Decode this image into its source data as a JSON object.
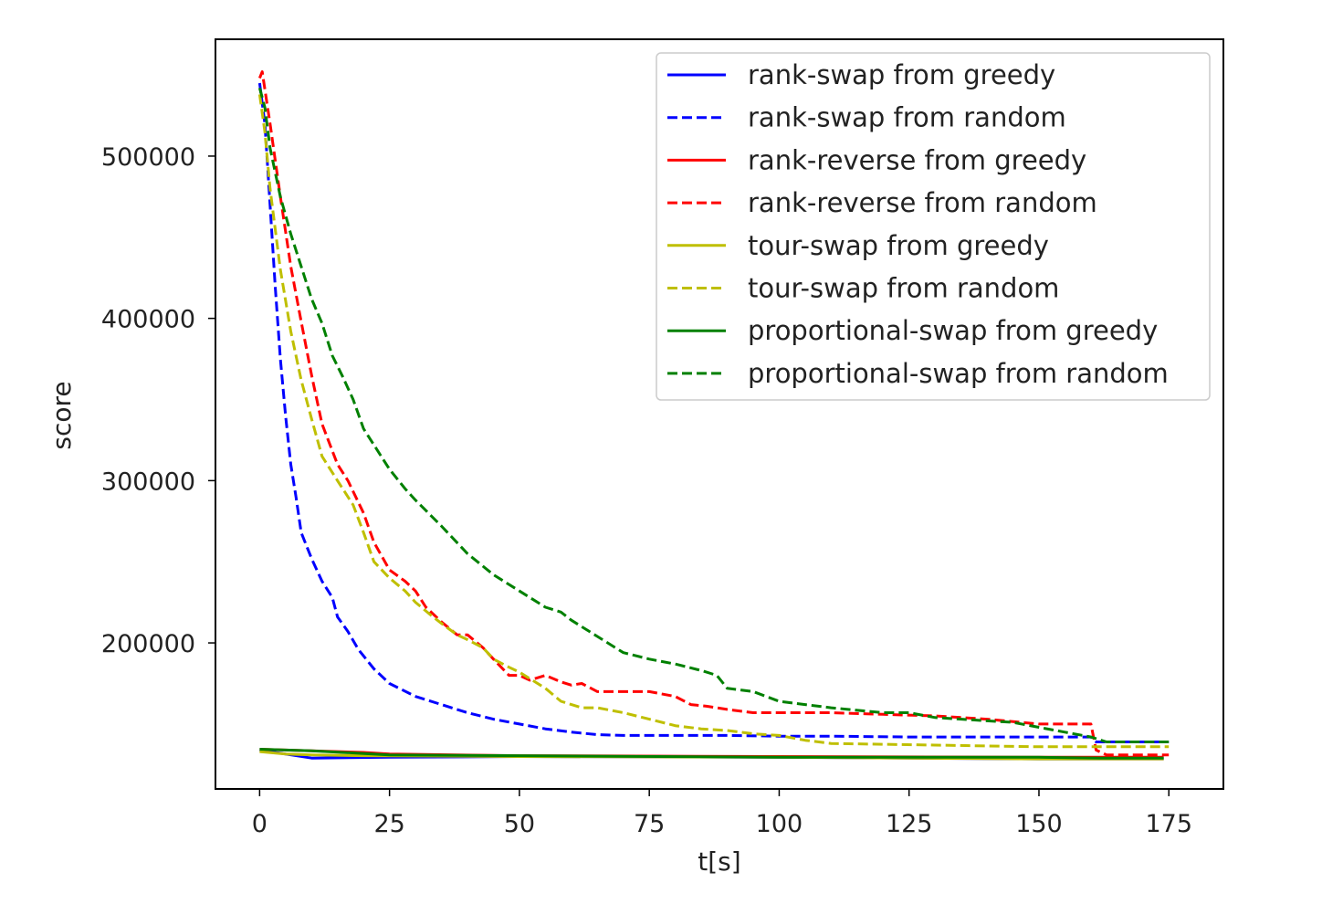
{
  "chart_data": {
    "type": "line",
    "title": "",
    "xlabel": "t[s]",
    "ylabel": "score",
    "xlim": [
      -8.5,
      185.5
    ],
    "ylim": [
      110000,
      572000
    ],
    "xticks": [
      0,
      25,
      50,
      75,
      100,
      125,
      150,
      175
    ],
    "yticks": [
      200000,
      300000,
      400000,
      500000
    ],
    "grid": false,
    "legend_position": "top-right",
    "series": [
      {
        "name": "rank-swap from greedy",
        "color": "#0000ff",
        "dash": "solid",
        "x": [
          0,
          10,
          25,
          50,
          100,
          150,
          162,
          174
        ],
        "y": [
          134000,
          129000,
          129500,
          130000,
          129500,
          128500,
          128500,
          128500
        ]
      },
      {
        "name": "rank-swap from random",
        "color": "#0000ff",
        "dash": "dashed",
        "x": [
          0,
          1,
          2,
          3,
          4,
          5,
          6,
          7,
          8,
          10,
          12,
          14,
          15,
          17,
          19,
          21,
          22,
          25,
          30,
          35,
          40,
          45,
          50,
          55,
          60,
          65,
          70,
          80,
          90,
          100,
          110,
          125,
          140,
          150,
          160,
          161,
          165,
          175
        ],
        "y": [
          545000,
          520000,
          470000,
          420000,
          375000,
          340000,
          310000,
          290000,
          268000,
          252000,
          238000,
          228000,
          216000,
          207000,
          196000,
          188000,
          184000,
          175000,
          167000,
          162000,
          157000,
          153000,
          150000,
          147000,
          145000,
          143500,
          143000,
          143000,
          143000,
          142500,
          142500,
          142000,
          142000,
          142000,
          142000,
          139000,
          139000,
          139000
        ]
      },
      {
        "name": "rank-reverse from greedy",
        "color": "#ff0000",
        "dash": "solid",
        "x": [
          0,
          10,
          20,
          25,
          50,
          100,
          150,
          162,
          174
        ],
        "y": [
          134500,
          133500,
          132500,
          131500,
          130500,
          130000,
          129500,
          129500,
          129500
        ]
      },
      {
        "name": "rank-reverse from random",
        "color": "#ff0000",
        "dash": "dashed",
        "x": [
          0,
          0.5,
          2,
          4,
          6,
          8,
          10,
          12,
          15,
          17,
          20,
          22,
          25,
          28,
          30,
          32,
          35,
          38,
          40,
          43,
          45,
          48,
          50,
          52,
          55,
          58,
          60,
          62,
          65,
          70,
          75,
          80,
          83,
          86,
          90,
          95,
          100,
          110,
          120,
          130,
          140,
          150,
          155,
          160,
          161,
          163,
          175
        ],
        "y": [
          548000,
          552000,
          520000,
          475000,
          432000,
          398000,
          365000,
          335000,
          310000,
          300000,
          280000,
          262000,
          245000,
          238000,
          232000,
          222000,
          213000,
          205000,
          205000,
          197000,
          190000,
          180000,
          180000,
          177000,
          180000,
          176000,
          174000,
          175000,
          170000,
          170000,
          170000,
          167000,
          162000,
          161000,
          159000,
          157000,
          157000,
          157000,
          156000,
          155000,
          153000,
          150000,
          150000,
          150000,
          134000,
          131000,
          131000
        ]
      },
      {
        "name": "tour-swap from greedy",
        "color": "#bfbf00",
        "dash": "solid",
        "x": [
          0,
          5,
          10,
          20,
          50,
          100,
          150,
          174
        ],
        "y": [
          133000,
          131500,
          131000,
          130500,
          130000,
          129500,
          128500,
          128500
        ]
      },
      {
        "name": "tour-swap from random",
        "color": "#bfbf00",
        "dash": "dashed",
        "x": [
          0,
          1,
          2,
          4,
          6,
          8,
          10,
          12,
          15,
          18,
          20,
          22,
          25,
          28,
          30,
          33,
          35,
          38,
          40,
          43,
          45,
          48,
          50,
          55,
          58,
          62,
          65,
          70,
          75,
          80,
          85,
          90,
          95,
          100,
          105,
          110,
          120,
          130,
          140,
          150,
          160,
          165,
          175
        ],
        "y": [
          538000,
          515000,
          480000,
          430000,
          392000,
          362000,
          338000,
          315000,
          300000,
          285000,
          268000,
          250000,
          240000,
          232000,
          225000,
          217000,
          212000,
          205000,
          202000,
          197000,
          190000,
          185000,
          182000,
          172000,
          164000,
          160000,
          160000,
          157000,
          153000,
          149000,
          147000,
          146000,
          144000,
          143000,
          140000,
          138000,
          137500,
          137000,
          136500,
          136000,
          136000,
          136000,
          136000
        ]
      },
      {
        "name": "proportional-swap from greedy",
        "color": "#008000",
        "dash": "solid",
        "x": [
          0,
          10,
          25,
          50,
          100,
          150,
          162,
          174
        ],
        "y": [
          134500,
          133500,
          131000,
          130500,
          129500,
          129500,
          129000,
          129000
        ]
      },
      {
        "name": "proportional-swap from random",
        "color": "#008000",
        "dash": "dashed",
        "x": [
          0,
          1,
          2,
          4,
          6,
          8,
          10,
          12,
          14,
          16,
          18,
          20,
          22,
          25,
          28,
          30,
          35,
          40,
          45,
          50,
          55,
          58,
          60,
          65,
          70,
          75,
          80,
          85,
          88,
          90,
          95,
          100,
          105,
          110,
          120,
          125,
          130,
          140,
          145,
          150,
          155,
          160,
          163,
          165,
          175
        ],
        "y": [
          542000,
          530000,
          505000,
          475000,
          452000,
          432000,
          412000,
          397000,
          377000,
          364000,
          350000,
          332000,
          322000,
          307000,
          295000,
          288000,
          272000,
          255000,
          242000,
          232000,
          222000,
          219000,
          214000,
          204000,
          194000,
          190000,
          187000,
          183000,
          180000,
          172000,
          170000,
          164000,
          162000,
          160000,
          157000,
          157000,
          154000,
          152000,
          151000,
          148000,
          145000,
          142000,
          139000,
          139000,
          139000
        ]
      }
    ]
  }
}
